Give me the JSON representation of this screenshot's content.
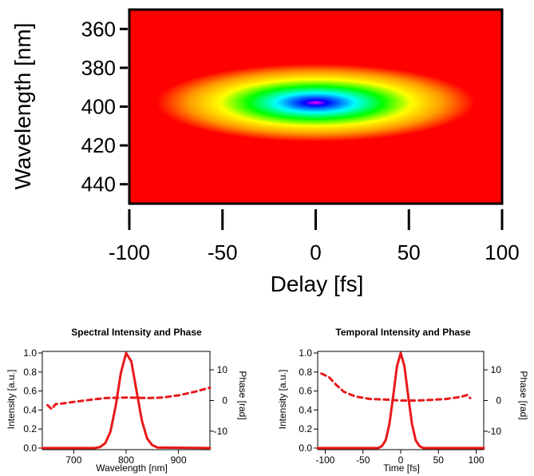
{
  "chart_data": [
    {
      "type": "heatmap",
      "xlabel": "Delay [fs]",
      "ylabel": "Wavelength [nm]",
      "xlim": [
        -100,
        100
      ],
      "ylim": [
        350,
        450
      ],
      "y_inverted": true,
      "xticks": [
        -100,
        -50,
        0,
        50,
        100
      ],
      "yticks": [
        360,
        380,
        400,
        420,
        440
      ],
      "peak": {
        "x": 0,
        "y": 398
      },
      "spread": {
        "x_fwhm": 45,
        "y_fwhm": 10
      },
      "colormap": [
        "#ff0000",
        "#ff9900",
        "#ffff00",
        "#00ff00",
        "#00ffff",
        "#0000ff",
        "#ff00ff"
      ]
    },
    {
      "type": "line",
      "title": "Spectral Intensity and Phase",
      "xlabel": "Wavelength [nm]",
      "ylabel": "Intensity [a.u.]",
      "y2label": "Phase [rad]",
      "xlim": [
        640,
        960
      ],
      "ylim": [
        0,
        1.0
      ],
      "y2lim": [
        -16,
        16
      ],
      "xticks": [
        700,
        800,
        900
      ],
      "yticks": [
        "0.0",
        "0.2",
        "0.4",
        "0.6",
        "0.8",
        "1.0"
      ],
      "y2ticks": [
        -10,
        0,
        10
      ],
      "series": [
        {
          "axis": "left",
          "style": "solid",
          "color": "#e8191a",
          "x": [
            640,
            740,
            750,
            760,
            770,
            780,
            790,
            800,
            810,
            820,
            830,
            840,
            850,
            860,
            960
          ],
          "y": [
            0,
            0,
            0.01,
            0.05,
            0.17,
            0.44,
            0.79,
            1.0,
            0.91,
            0.6,
            0.29,
            0.1,
            0.03,
            0.005,
            0
          ]
        },
        {
          "axis": "right",
          "style": "dashed",
          "color": "#e8191a",
          "x": [
            650,
            658,
            665,
            680,
            720,
            760,
            800,
            840,
            870,
            900,
            930,
            960
          ],
          "y": [
            -1.5,
            -2.8,
            -1.2,
            -0.9,
            0.0,
            0.8,
            1.0,
            0.8,
            1.0,
            1.7,
            2.8,
            4.2
          ]
        }
      ]
    },
    {
      "type": "line",
      "title": "Temporal Intensity and Phase",
      "xlabel": "Time [fs]",
      "ylabel": "Intensity [a.u.]",
      "y2label": "Phase [rad]",
      "xlim": [
        -110,
        110
      ],
      "ylim": [
        0,
        1.0
      ],
      "y2lim": [
        -16,
        16
      ],
      "xticks": [
        -100,
        -50,
        0,
        50,
        100
      ],
      "yticks": [
        "0.0",
        "0.2",
        "0.4",
        "0.6",
        "0.8",
        "1.0"
      ],
      "y2ticks": [
        -10,
        0,
        10
      ],
      "series": [
        {
          "axis": "left",
          "style": "solid",
          "color": "#e8191a",
          "x": [
            -110,
            -30,
            -25,
            -20,
            -15,
            -10,
            -5,
            0,
            5,
            10,
            15,
            20,
            25,
            30,
            110
          ],
          "y": [
            0,
            0,
            0.02,
            0.08,
            0.25,
            0.54,
            0.86,
            1.0,
            0.86,
            0.54,
            0.25,
            0.08,
            0.02,
            0,
            0
          ]
        },
        {
          "axis": "right",
          "style": "dashed",
          "color": "#e8191a",
          "x": [
            -105,
            -95,
            -85,
            -75,
            -60,
            -40,
            -20,
            0,
            20,
            40,
            60,
            80,
            88,
            92
          ],
          "y": [
            8.8,
            7.6,
            5.0,
            2.8,
            1.3,
            0.5,
            0.3,
            0.0,
            0.0,
            0.2,
            0.5,
            1.2,
            1.8,
            0.8
          ]
        }
      ]
    }
  ]
}
